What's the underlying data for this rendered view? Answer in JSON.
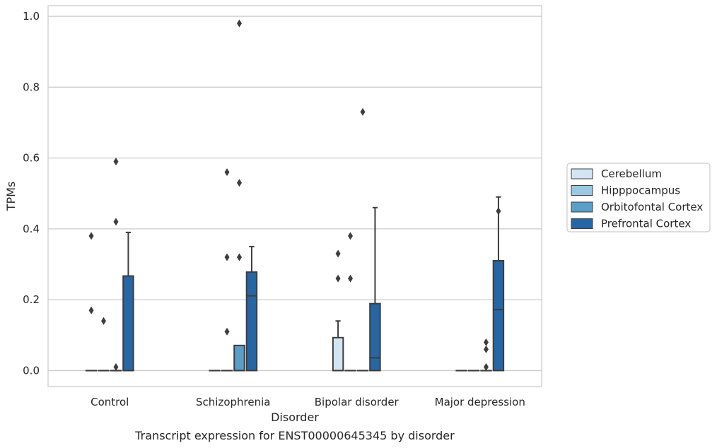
{
  "caption": "Transcript expression for ENST00000645345 by disorder",
  "chart_data": {
    "type": "box",
    "xlabel": "Disorder",
    "ylabel": "TPMs",
    "ylim": [
      -0.045,
      1.03
    ],
    "yticks": [
      0.0,
      0.2,
      0.4,
      0.6,
      0.8,
      1.0
    ],
    "ytick_labels": [
      "0.0",
      "0.2",
      "0.4",
      "0.6",
      "0.8",
      "1.0"
    ],
    "grid": "horizontal",
    "legend_position": "right",
    "categories": [
      "Control",
      "Schizophrenia",
      "Bipolar disorder",
      "Major depression"
    ],
    "series": [
      {
        "name": "Cerebellum",
        "color": "#d3e4f3",
        "boxes": [
          {
            "q1": 0,
            "median": 0,
            "q3": 0,
            "whisker_low": 0,
            "whisker_high": 0,
            "outliers": [
              0.38,
              0.17
            ]
          },
          {
            "q1": 0,
            "median": 0,
            "q3": 0,
            "whisker_low": 0,
            "whisker_high": 0,
            "outliers": []
          },
          {
            "q1": 0,
            "median": 0,
            "q3": 0.093,
            "whisker_low": 0,
            "whisker_high": 0.14,
            "outliers": [
              0.33,
              0.26
            ]
          },
          {
            "q1": 0,
            "median": 0,
            "q3": 0,
            "whisker_low": 0,
            "whisker_high": 0,
            "outliers": []
          }
        ]
      },
      {
        "name": "Hipppocampus",
        "color": "#9ac8e0",
        "boxes": [
          {
            "q1": 0,
            "median": 0,
            "q3": 0,
            "whisker_low": 0,
            "whisker_high": 0,
            "outliers": [
              0.14
            ]
          },
          {
            "q1": 0,
            "median": 0,
            "q3": 0,
            "whisker_low": 0,
            "whisker_high": 0,
            "outliers": [
              0.56,
              0.32,
              0.11
            ]
          },
          {
            "q1": 0,
            "median": 0,
            "q3": 0,
            "whisker_low": 0,
            "whisker_high": 0,
            "outliers": [
              0.38,
              0.26
            ]
          },
          {
            "q1": 0,
            "median": 0,
            "q3": 0,
            "whisker_low": 0,
            "whisker_high": 0,
            "outliers": []
          }
        ]
      },
      {
        "name": "Orbitofontal Cortex",
        "color": "#5a9ec8",
        "boxes": [
          {
            "q1": 0,
            "median": 0,
            "q3": 0,
            "whisker_low": 0,
            "whisker_high": 0,
            "outliers": [
              0.59,
              0.42,
              0.01
            ]
          },
          {
            "q1": 0,
            "median": 0,
            "q3": 0.071,
            "whisker_low": 0,
            "whisker_high": 0.071,
            "outliers": [
              0.98,
              0.53,
              0.32
            ]
          },
          {
            "q1": 0,
            "median": 0,
            "q3": 0,
            "whisker_low": 0,
            "whisker_high": 0,
            "outliers": [
              0.73
            ]
          },
          {
            "q1": 0,
            "median": 0,
            "q3": 0,
            "whisker_low": 0,
            "whisker_high": 0,
            "outliers": [
              0.08,
              0.06,
              0.01
            ]
          }
        ]
      },
      {
        "name": "Prefrontal Cortex",
        "color": "#2666a4",
        "boxes": [
          {
            "q1": 0,
            "median": 0,
            "q3": 0.267,
            "whisker_low": 0,
            "whisker_high": 0.39,
            "outliers": []
          },
          {
            "q1": 0,
            "median": 0.211,
            "q3": 0.278,
            "whisker_low": 0,
            "whisker_high": 0.35,
            "outliers": []
          },
          {
            "q1": 0,
            "median": 0.036,
            "q3": 0.189,
            "whisker_low": 0,
            "whisker_high": 0.46,
            "outliers": []
          },
          {
            "q1": 0,
            "median": 0.172,
            "q3": 0.31,
            "whisker_low": 0,
            "whisker_high": 0.49,
            "outliers": [
              0.45
            ]
          }
        ]
      }
    ]
  }
}
